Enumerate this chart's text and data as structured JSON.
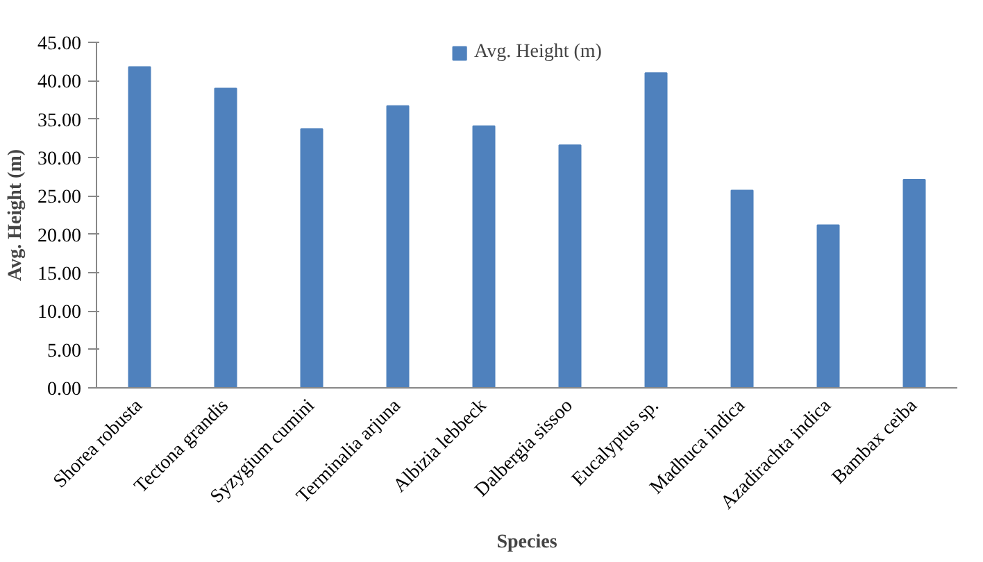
{
  "chart_data": {
    "type": "bar",
    "xlabel": "Species",
    "ylabel": "Avg. Height (m)",
    "categories": [
      "Shorea robusta",
      "Tectona grandis",
      "Syzygium cumini",
      "Terminalia arjuna",
      "Albizia lebbeck",
      "Dalbergia sissoo",
      "Eucalyptus sp.",
      "Madhuca indica",
      "Azadirachta indica",
      "Bambax ceiba"
    ],
    "series": [
      {
        "name": "Avg. Height (m)",
        "color": "#4f81bd",
        "values": [
          41.8,
          39.0,
          33.7,
          36.7,
          34.1,
          31.6,
          41.0,
          25.7,
          21.2,
          27.1
        ]
      }
    ],
    "ylim": [
      0,
      45
    ],
    "yticks": [
      {
        "value": 0,
        "label": "0.00"
      },
      {
        "value": 5,
        "label": "5.00"
      },
      {
        "value": 10,
        "label": "10.00"
      },
      {
        "value": 15,
        "label": "15.00"
      },
      {
        "value": 20,
        "label": "20.00"
      },
      {
        "value": 25,
        "label": "25.00"
      },
      {
        "value": 30,
        "label": "30.00"
      },
      {
        "value": 35,
        "label": "35.00"
      },
      {
        "value": 40,
        "label": "40.00"
      },
      {
        "value": 45,
        "label": "45.00"
      }
    ],
    "grid": false,
    "legend": "top"
  }
}
